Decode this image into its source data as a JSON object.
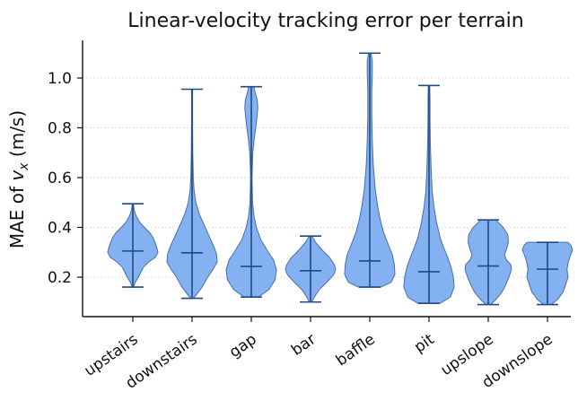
{
  "chart_data": {
    "type": "violin",
    "title": "Linear-velocity tracking error per terrain",
    "ylabel_prefix": "MAE of ",
    "ylabel_var": "v",
    "ylabel_sub": "x",
    "ylabel_suffix": " (m/s)",
    "xlabel": "",
    "ylim": [
      0.035,
      1.15
    ],
    "yticks": [
      0.2,
      0.4,
      0.6,
      0.8,
      1.0
    ],
    "ytick_labels": [
      "0.2",
      "0.4",
      "0.6",
      "0.8",
      "1.0"
    ],
    "grid": "horizontal-dotted",
    "legend": "none",
    "colors": {
      "fill": "#7aaaf0",
      "edge": "#4a6fa8",
      "line": "#1f4a82"
    },
    "categories": [
      "upstairs",
      "downstairs",
      "gap",
      "bar",
      "baffle",
      "pit",
      "upslope",
      "downslope"
    ],
    "violins": [
      {
        "name": "upstairs",
        "min": 0.16,
        "median": 0.305,
        "max": 0.495,
        "profile": [
          [
            0.16,
            0.03
          ],
          [
            0.18,
            0.1
          ],
          [
            0.2,
            0.22
          ],
          [
            0.22,
            0.32
          ],
          [
            0.24,
            0.42
          ],
          [
            0.26,
            0.62
          ],
          [
            0.28,
            0.9
          ],
          [
            0.3,
            1.0
          ],
          [
            0.32,
            0.95
          ],
          [
            0.34,
            0.88
          ],
          [
            0.36,
            0.8
          ],
          [
            0.38,
            0.66
          ],
          [
            0.4,
            0.46
          ],
          [
            0.42,
            0.28
          ],
          [
            0.44,
            0.16
          ],
          [
            0.46,
            0.08
          ],
          [
            0.48,
            0.04
          ],
          [
            0.495,
            0.02
          ]
        ]
      },
      {
        "name": "downstairs",
        "min": 0.115,
        "median": 0.298,
        "max": 0.955,
        "profile": [
          [
            0.115,
            0.05
          ],
          [
            0.13,
            0.18
          ],
          [
            0.16,
            0.4
          ],
          [
            0.2,
            0.62
          ],
          [
            0.23,
            0.82
          ],
          [
            0.26,
            1.0
          ],
          [
            0.29,
            0.98
          ],
          [
            0.32,
            0.88
          ],
          [
            0.36,
            0.7
          ],
          [
            0.4,
            0.52
          ],
          [
            0.45,
            0.3
          ],
          [
            0.5,
            0.15
          ],
          [
            0.55,
            0.08
          ],
          [
            0.6,
            0.05
          ],
          [
            0.7,
            0.03
          ],
          [
            0.8,
            0.02
          ],
          [
            0.955,
            0.02
          ]
        ]
      },
      {
        "name": "gap",
        "min": 0.12,
        "median": 0.243,
        "max": 0.965,
        "profile": [
          [
            0.12,
            0.28
          ],
          [
            0.15,
            0.7
          ],
          [
            0.19,
            0.95
          ],
          [
            0.23,
            1.0
          ],
          [
            0.27,
            0.88
          ],
          [
            0.31,
            0.62
          ],
          [
            0.35,
            0.38
          ],
          [
            0.4,
            0.2
          ],
          [
            0.45,
            0.1
          ],
          [
            0.5,
            0.05
          ],
          [
            0.6,
            0.03
          ],
          [
            0.7,
            0.06
          ],
          [
            0.76,
            0.12
          ],
          [
            0.8,
            0.18
          ],
          [
            0.84,
            0.22
          ],
          [
            0.88,
            0.26
          ],
          [
            0.91,
            0.24
          ],
          [
            0.94,
            0.16
          ],
          [
            0.965,
            0.1
          ]
        ]
      },
      {
        "name": "bar",
        "min": 0.1,
        "median": 0.226,
        "max": 0.365,
        "profile": [
          [
            0.1,
            0.05
          ],
          [
            0.12,
            0.15
          ],
          [
            0.15,
            0.35
          ],
          [
            0.18,
            0.65
          ],
          [
            0.21,
            0.92
          ],
          [
            0.23,
            1.0
          ],
          [
            0.25,
            0.95
          ],
          [
            0.28,
            0.75
          ],
          [
            0.31,
            0.45
          ],
          [
            0.34,
            0.2
          ],
          [
            0.365,
            0.05
          ]
        ]
      },
      {
        "name": "baffle",
        "min": 0.16,
        "median": 0.265,
        "max": 1.1,
        "profile": [
          [
            0.16,
            0.45
          ],
          [
            0.18,
            0.85
          ],
          [
            0.21,
            1.0
          ],
          [
            0.25,
            0.98
          ],
          [
            0.29,
            0.9
          ],
          [
            0.33,
            0.74
          ],
          [
            0.38,
            0.55
          ],
          [
            0.43,
            0.42
          ],
          [
            0.48,
            0.32
          ],
          [
            0.55,
            0.22
          ],
          [
            0.65,
            0.14
          ],
          [
            0.75,
            0.1
          ],
          [
            0.85,
            0.08
          ],
          [
            0.95,
            0.08
          ],
          [
            1.02,
            0.1
          ],
          [
            1.07,
            0.1
          ],
          [
            1.1,
            0.05
          ]
        ]
      },
      {
        "name": "pit",
        "min": 0.095,
        "median": 0.222,
        "max": 0.97,
        "profile": [
          [
            0.095,
            0.45
          ],
          [
            0.12,
            0.85
          ],
          [
            0.16,
            1.0
          ],
          [
            0.2,
            0.97
          ],
          [
            0.24,
            0.88
          ],
          [
            0.28,
            0.74
          ],
          [
            0.32,
            0.58
          ],
          [
            0.36,
            0.44
          ],
          [
            0.42,
            0.3
          ],
          [
            0.48,
            0.2
          ],
          [
            0.55,
            0.12
          ],
          [
            0.65,
            0.08
          ],
          [
            0.75,
            0.05
          ],
          [
            0.85,
            0.04
          ],
          [
            0.92,
            0.04
          ],
          [
            0.97,
            0.03
          ]
        ]
      },
      {
        "name": "upslope",
        "min": 0.09,
        "median": 0.245,
        "max": 0.43,
        "profile": [
          [
            0.09,
            0.1
          ],
          [
            0.11,
            0.3
          ],
          [
            0.14,
            0.55
          ],
          [
            0.17,
            0.7
          ],
          [
            0.2,
            0.82
          ],
          [
            0.23,
            0.92
          ],
          [
            0.25,
            0.9
          ],
          [
            0.27,
            0.72
          ],
          [
            0.29,
            0.65
          ],
          [
            0.31,
            0.72
          ],
          [
            0.34,
            0.8
          ],
          [
            0.37,
            0.78
          ],
          [
            0.4,
            0.6
          ],
          [
            0.43,
            0.3
          ]
        ]
      },
      {
        "name": "downslope",
        "min": 0.09,
        "median": 0.232,
        "max": 0.34,
        "profile": [
          [
            0.09,
            0.15
          ],
          [
            0.11,
            0.4
          ],
          [
            0.14,
            0.62
          ],
          [
            0.17,
            0.72
          ],
          [
            0.2,
            0.82
          ],
          [
            0.23,
            0.78
          ],
          [
            0.26,
            0.82
          ],
          [
            0.29,
            0.92
          ],
          [
            0.31,
            1.0
          ],
          [
            0.33,
            0.92
          ],
          [
            0.34,
            0.8
          ]
        ]
      }
    ]
  }
}
